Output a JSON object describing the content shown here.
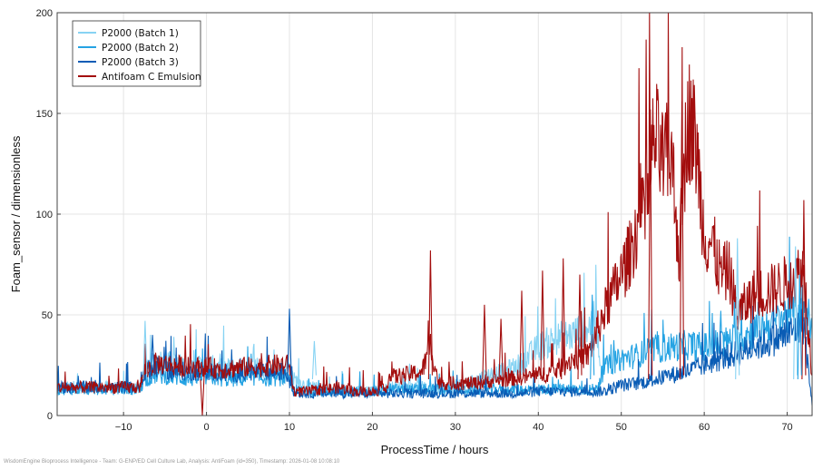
{
  "chart_data": {
    "type": "line",
    "xlabel": "ProcessTime / hours",
    "ylabel": "Foam_sensor / dimensionless",
    "xlim": [
      -18,
      73
    ],
    "ylim": [
      0,
      200
    ],
    "xticks": [
      -10,
      0,
      10,
      20,
      30,
      40,
      50,
      60,
      70
    ],
    "yticks": [
      0,
      50,
      100,
      150,
      200
    ],
    "grid": true,
    "legend_position": "top-left",
    "series": [
      {
        "name": "P2000 (Batch 1)",
        "color": "#87d3f3",
        "x": [
          -18,
          -8,
          -7.5,
          -6,
          -4,
          -2,
          0,
          2,
          4,
          6,
          8,
          10,
          10.5,
          12,
          14,
          16,
          18,
          20,
          21.5,
          22,
          24,
          26,
          28,
          30,
          32,
          34,
          36,
          38,
          40,
          42,
          44,
          46,
          47,
          47.5
        ],
        "y": [
          14,
          14,
          22,
          28,
          26,
          24,
          25,
          24,
          23,
          24,
          22,
          24,
          18,
          15,
          13,
          12,
          12,
          12,
          13,
          14,
          14,
          14,
          13,
          14,
          17,
          20,
          22,
          26,
          34,
          38,
          40,
          44,
          48,
          25
        ]
      },
      {
        "name": "P2000 (Batch 2)",
        "color": "#25a3e3",
        "x": [
          -18,
          -8,
          -7.5,
          -6,
          -4,
          -2,
          0,
          2,
          4,
          6,
          8,
          9.5,
          10.5,
          12,
          14,
          16,
          18,
          20,
          21.5,
          22,
          24,
          26,
          28,
          30,
          32,
          34,
          36,
          38,
          40,
          42,
          44,
          46,
          47,
          48,
          50,
          52,
          54,
          56,
          58,
          60,
          62,
          64,
          66,
          68,
          70,
          72,
          73
        ],
        "y": [
          13,
          13,
          18,
          20,
          19,
          18,
          19,
          18,
          18,
          19,
          18,
          19,
          13,
          12,
          12,
          12,
          12,
          12,
          12,
          13,
          13,
          13,
          13,
          13,
          13,
          13,
          13,
          13,
          13,
          13,
          13,
          13,
          13,
          24,
          28,
          30,
          33,
          34,
          35,
          34,
          36,
          38,
          42,
          46,
          50,
          55,
          40
        ]
      },
      {
        "name": "P2000 (Batch 3)",
        "color": "#0a5cb5",
        "x": [
          -18,
          -8,
          -7.5,
          -6,
          -4,
          -2,
          0,
          2,
          4,
          6,
          8,
          9.5,
          10.5,
          12,
          14,
          16,
          18,
          20,
          22,
          24,
          26,
          28,
          30,
          32,
          34,
          36,
          38,
          40,
          42,
          44,
          46,
          47,
          48,
          50,
          52,
          54,
          56,
          58,
          60,
          62,
          64,
          66,
          68,
          70,
          72,
          73
        ],
        "y": [
          14,
          14,
          22,
          24,
          22,
          22,
          22,
          21,
          21,
          22,
          21,
          22,
          12,
          11,
          11,
          11,
          11,
          11,
          11,
          11,
          11,
          11,
          11,
          11,
          11,
          11,
          11,
          12,
          12,
          12,
          12,
          12,
          12,
          15,
          16,
          18,
          20,
          22,
          25,
          28,
          31,
          34,
          37,
          40,
          45,
          5
        ]
      },
      {
        "name": "Antifoam C Emulsion",
        "color": "#a30d0d",
        "x": [
          -18,
          -8,
          -7.5,
          -6,
          -4,
          -2,
          0,
          2,
          4,
          6,
          8,
          10,
          10.5,
          12,
          14,
          16,
          18,
          20,
          21.5,
          22,
          24,
          26,
          27,
          28,
          30,
          32,
          34,
          36,
          38,
          40,
          42,
          44,
          46,
          48,
          50,
          51,
          52,
          53,
          54,
          55,
          56,
          57,
          58,
          59,
          60,
          61,
          62,
          63,
          64,
          66,
          68,
          70,
          72,
          73
        ],
        "y": [
          14,
          14,
          22,
          26,
          25,
          24,
          24,
          23,
          24,
          24,
          25,
          25,
          12,
          12,
          13,
          14,
          12,
          12,
          13,
          19,
          20,
          22,
          35,
          16,
          16,
          16,
          17,
          18,
          19,
          20,
          22,
          28,
          30,
          52,
          70,
          80,
          95,
          100,
          140,
          125,
          130,
          80,
          150,
          135,
          90,
          85,
          70,
          72,
          50,
          60,
          62,
          66,
          72,
          20
        ]
      }
    ],
    "spikes": [
      {
        "series": 3,
        "x": 27,
        "y": 82
      },
      {
        "series": 3,
        "x": 33.5,
        "y": 55
      },
      {
        "series": 3,
        "x": 35.5,
        "y": 48
      },
      {
        "series": 3,
        "x": 38,
        "y": 62
      },
      {
        "series": 3,
        "x": 40.5,
        "y": 72
      },
      {
        "series": 3,
        "x": 43,
        "y": 78
      },
      {
        "series": 3,
        "x": 45,
        "y": 70
      },
      {
        "series": 3,
        "x": 53.5,
        "y": 152
      },
      {
        "series": 3,
        "x": 57.3,
        "y": 156
      },
      {
        "series": 3,
        "x": 72,
        "y": 107
      },
      {
        "series": 3,
        "x": -0.5,
        "y": 0
      },
      {
        "series": 0,
        "x": -7.4,
        "y": 47
      },
      {
        "series": 0,
        "x": 13,
        "y": 37
      },
      {
        "series": 0,
        "x": 71,
        "y": 84
      },
      {
        "series": 0,
        "x": 64,
        "y": 88
      },
      {
        "series": 2,
        "x": 10,
        "y": 53
      },
      {
        "series": 2,
        "x": -6.5,
        "y": 40
      },
      {
        "series": 1,
        "x": 46.5,
        "y": 60
      },
      {
        "series": 1,
        "x": 71.5,
        "y": 70
      }
    ]
  },
  "footer_text": "WisdomEngine Bioprocess Intelligence - Team: G-ENP/ED Cell Culture Lab, Analysis: AntiFoam (id=350), Timestamp: 2026-01-08 10:08:10"
}
